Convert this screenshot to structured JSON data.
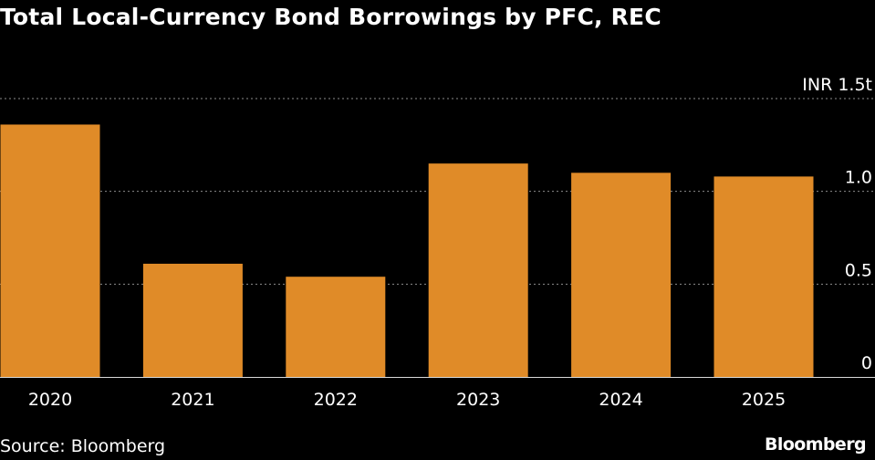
{
  "header": {
    "title": "Total Local-Currency Bond Borrowings by PFC, REC"
  },
  "footer": {
    "source": "Source: Bloomberg",
    "brand": "Bloomberg"
  },
  "colors": {
    "background": "#000000",
    "bar": "#e08b28",
    "gridline": "#8c8c8c",
    "text": "#ffffff"
  },
  "chart_data": {
    "type": "bar",
    "title": "Total Local-Currency Bond Borrowings by PFC, REC",
    "categories": [
      "2020",
      "2021",
      "2022",
      "2023",
      "2024",
      "2025"
    ],
    "values": [
      1.36,
      0.61,
      0.54,
      1.15,
      1.1,
      1.08
    ],
    "unit_label": "INR 1.5t",
    "ylim": [
      0,
      1.5
    ],
    "yticks": [
      0,
      0.5,
      1.0,
      1.5
    ],
    "ytick_labels": [
      "0",
      "0.5",
      "1.0",
      "INR 1.5t"
    ],
    "grid": true,
    "y_axis_position": "right",
    "legend": "none"
  }
}
